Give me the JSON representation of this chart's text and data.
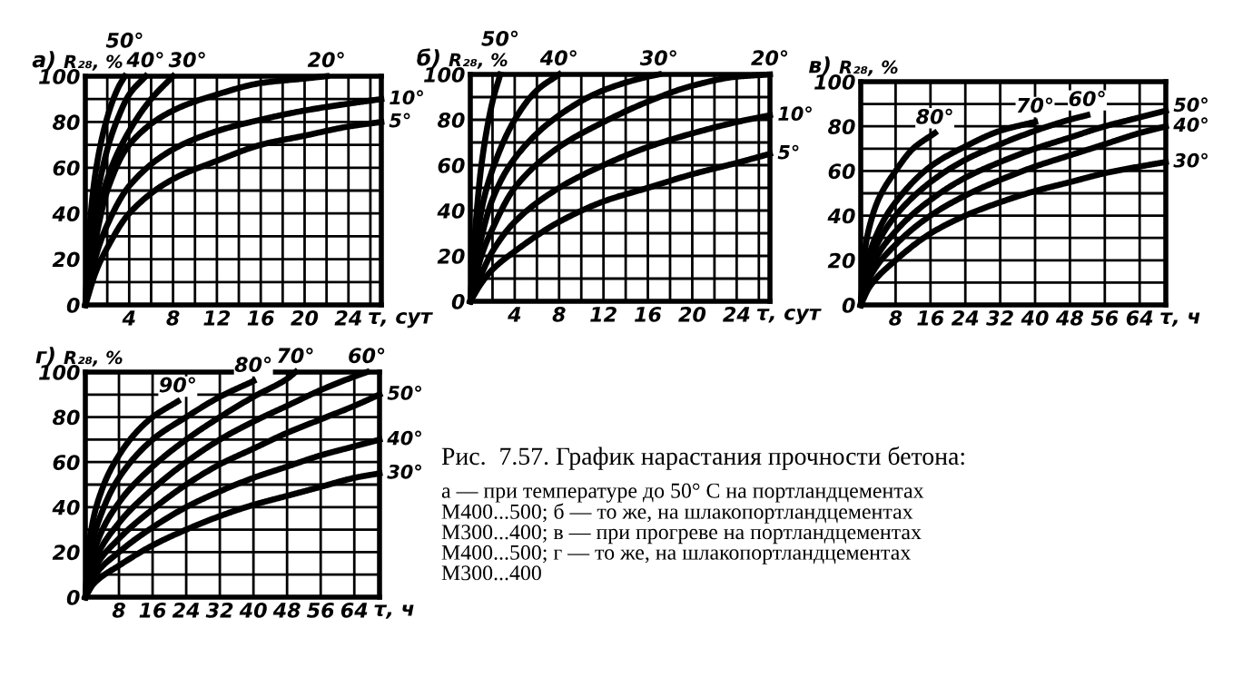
{
  "chart_data": [
    {
      "type": "line",
      "title": "а)",
      "ylabel": "R₂₈, %",
      "xlabel": "τ, сут",
      "xlim": [
        0,
        27
      ],
      "ylim": [
        0,
        100
      ],
      "xticks": [
        {
          "value": 2,
          "label": null
        },
        4,
        {
          "value": 6,
          "label": null
        },
        8,
        {
          "value": 10,
          "label": null
        },
        12,
        {
          "value": 14,
          "label": null
        },
        16,
        {
          "value": 18,
          "label": null
        },
        20,
        {
          "value": 22,
          "label": null
        },
        24,
        {
          "value": 26,
          "label": null
        }
      ],
      "yticks": [
        0,
        {
          "value": 10,
          "label": null
        },
        20,
        {
          "value": 30,
          "label": null
        },
        40,
        {
          "value": 50,
          "label": null
        },
        60,
        {
          "value": 70,
          "label": null
        },
        80,
        {
          "value": 90,
          "label": null
        },
        100
      ],
      "grid": true,
      "legend": false,
      "marker": "none",
      "line_style": "solid",
      "series": [
        {
          "name": "50°",
          "color": "#000000",
          "x": [
            0,
            0.5,
            1,
            2,
            3,
            3.6
          ],
          "values": [
            0,
            40,
            60,
            82,
            95,
            100
          ]
        },
        {
          "name": "40°",
          "color": "#000000",
          "x": [
            0,
            1,
            2,
            3,
            4,
            5.5
          ],
          "values": [
            0,
            45,
            68,
            82,
            92,
            100
          ]
        },
        {
          "name": "30°",
          "color": "#000000",
          "x": [
            0,
            1,
            2,
            4,
            6,
            8
          ],
          "values": [
            0,
            35,
            55,
            76,
            90,
            100
          ]
        },
        {
          "name": "20°",
          "color": "#000000",
          "x": [
            0,
            1,
            2,
            4,
            8,
            12,
            16,
            20,
            22
          ],
          "values": [
            0,
            30,
            50,
            70,
            85,
            92,
            97,
            99,
            100
          ]
        },
        {
          "name": "10°",
          "color": "#000000",
          "x": [
            0,
            1,
            2,
            4,
            8,
            12,
            16,
            20,
            24,
            27
          ],
          "values": [
            0,
            22,
            35,
            52,
            68,
            76,
            81,
            85,
            88,
            90
          ]
        },
        {
          "name": "5°",
          "color": "#000000",
          "x": [
            0,
            1,
            2,
            4,
            8,
            12,
            16,
            20,
            24,
            27
          ],
          "values": [
            0,
            15,
            25,
            40,
            55,
            63,
            70,
            74,
            78,
            80
          ]
        }
      ]
    },
    {
      "type": "line",
      "title": "б)",
      "ylabel": "R₂₈, %",
      "xlabel": "τ, сут",
      "xlim": [
        0,
        27
      ],
      "ylim": [
        0,
        100
      ],
      "xticks": [
        {
          "value": 2,
          "label": null
        },
        4,
        {
          "value": 6,
          "label": null
        },
        8,
        {
          "value": 10,
          "label": null
        },
        12,
        {
          "value": 14,
          "label": null
        },
        16,
        {
          "value": 18,
          "label": null
        },
        20,
        {
          "value": 22,
          "label": null
        },
        24,
        {
          "value": 26,
          "label": null
        }
      ],
      "yticks": [
        0,
        {
          "value": 10,
          "label": null
        },
        20,
        {
          "value": 30,
          "label": null
        },
        40,
        {
          "value": 50,
          "label": null
        },
        60,
        {
          "value": 70,
          "label": null
        },
        80,
        {
          "value": 90,
          "label": null
        },
        100
      ],
      "grid": true,
      "legend": false,
      "marker": "none",
      "line_style": "solid",
      "series": [
        {
          "name": "50°",
          "color": "#000000",
          "x": [
            0,
            0.5,
            1,
            2,
            2.7
          ],
          "values": [
            0,
            35,
            60,
            88,
            100
          ]
        },
        {
          "name": "40°",
          "color": "#000000",
          "x": [
            0,
            1,
            2,
            4,
            6,
            8
          ],
          "values": [
            0,
            40,
            58,
            80,
            93,
            100
          ]
        },
        {
          "name": "30°",
          "color": "#000000",
          "x": [
            0,
            1,
            2,
            4,
            8,
            12,
            16,
            17
          ],
          "values": [
            0,
            28,
            45,
            63,
            82,
            93,
            99,
            100
          ]
        },
        {
          "name": "20°",
          "color": "#000000",
          "x": [
            0,
            1,
            2,
            4,
            8,
            12,
            16,
            20,
            24,
            27
          ],
          "values": [
            0,
            20,
            32,
            50,
            68,
            79,
            88,
            95,
            99,
            100
          ]
        },
        {
          "name": "10°",
          "color": "#000000",
          "x": [
            0,
            1,
            2,
            4,
            8,
            12,
            16,
            20,
            24,
            27
          ],
          "values": [
            0,
            12,
            22,
            35,
            50,
            60,
            68,
            74,
            79,
            82
          ]
        },
        {
          "name": "5°",
          "color": "#000000",
          "x": [
            0,
            1,
            2,
            4,
            8,
            12,
            16,
            20,
            24,
            27
          ],
          "values": [
            0,
            8,
            14,
            22,
            35,
            44,
            50,
            56,
            61,
            65
          ]
        }
      ]
    },
    {
      "type": "line",
      "title": "в)",
      "ylabel": "R₂₈, %",
      "xlabel": "τ, ч",
      "xlim": [
        0,
        70
      ],
      "ylim": [
        0,
        100
      ],
      "xticks": [
        8,
        16,
        24,
        32,
        40,
        48,
        56,
        64
      ],
      "yticks": [
        0,
        {
          "value": 10,
          "label": null
        },
        20,
        {
          "value": 30,
          "label": null
        },
        40,
        {
          "value": 50,
          "label": null
        },
        60,
        {
          "value": 70,
          "label": null
        },
        80,
        {
          "value": 90,
          "label": null
        },
        100
      ],
      "grid": true,
      "legend": false,
      "marker": "none",
      "line_style": "solid",
      "series": [
        {
          "name": "80°",
          "color": "#000000",
          "x": [
            0,
            1,
            2,
            4,
            8,
            12,
            17
          ],
          "values": [
            0,
            25,
            35,
            47,
            60,
            70,
            77
          ]
        },
        {
          "name": "70°",
          "color": "#000000",
          "x": [
            0,
            1,
            4,
            8,
            16,
            24,
            32,
            40
          ],
          "values": [
            0,
            15,
            33,
            46,
            62,
            71,
            78,
            82
          ]
        },
        {
          "name": "60°",
          "color": "#000000",
          "x": [
            0,
            1,
            4,
            8,
            16,
            24,
            32,
            40,
            48,
            52
          ],
          "values": [
            0,
            12,
            28,
            40,
            55,
            65,
            72,
            78,
            83,
            85
          ]
        },
        {
          "name": "50°",
          "color": "#000000",
          "x": [
            0,
            2,
            8,
            16,
            24,
            32,
            40,
            48,
            56,
            64,
            70
          ],
          "values": [
            0,
            15,
            33,
            47,
            57,
            64,
            70,
            75,
            80,
            84,
            87
          ]
        },
        {
          "name": "40°",
          "color": "#000000",
          "x": [
            0,
            2,
            8,
            16,
            24,
            32,
            40,
            48,
            56,
            64,
            70
          ],
          "values": [
            0,
            12,
            27,
            40,
            49,
            56,
            62,
            67,
            72,
            77,
            80
          ]
        },
        {
          "name": "30°",
          "color": "#000000",
          "x": [
            0,
            2,
            8,
            16,
            24,
            32,
            40,
            48,
            56,
            64,
            70
          ],
          "values": [
            0,
            8,
            20,
            32,
            40,
            46,
            51,
            55,
            59,
            62,
            64
          ]
        }
      ]
    },
    {
      "type": "line",
      "title": "г)",
      "ylabel": "R₂₈, %",
      "xlabel": "τ, ч",
      "xlim": [
        0,
        70
      ],
      "ylim": [
        0,
        100
      ],
      "xticks": [
        8,
        16,
        24,
        32,
        40,
        48,
        56,
        64
      ],
      "yticks": [
        0,
        {
          "value": 10,
          "label": null
        },
        20,
        {
          "value": 30,
          "label": null
        },
        40,
        {
          "value": 50,
          "label": null
        },
        60,
        {
          "value": 70,
          "label": null
        },
        80,
        {
          "value": 90,
          "label": null
        },
        100
      ],
      "grid": true,
      "legend": false,
      "marker": "none",
      "line_style": "solid",
      "series": [
        {
          "name": "90°",
          "color": "#000000",
          "x": [
            0,
            1,
            4,
            8,
            12,
            16,
            22
          ],
          "values": [
            0,
            25,
            48,
            63,
            73,
            80,
            87
          ]
        },
        {
          "name": "80°",
          "color": "#000000",
          "x": [
            0,
            1,
            4,
            8,
            16,
            24,
            32,
            40
          ],
          "values": [
            0,
            18,
            38,
            53,
            70,
            80,
            89,
            96
          ]
        },
        {
          "name": "70°",
          "color": "#000000",
          "x": [
            0,
            2,
            8,
            16,
            24,
            32,
            40,
            48,
            50
          ],
          "values": [
            0,
            20,
            42,
            58,
            70,
            80,
            89,
            97,
            100
          ]
        },
        {
          "name": "60°",
          "color": "#000000",
          "x": [
            0,
            2,
            8,
            16,
            24,
            32,
            40,
            48,
            56,
            64,
            67
          ],
          "values": [
            0,
            15,
            33,
            48,
            60,
            70,
            78,
            85,
            92,
            98,
            100
          ]
        },
        {
          "name": "50°",
          "color": "#000000",
          "x": [
            0,
            2,
            8,
            16,
            24,
            32,
            40,
            48,
            56,
            64,
            70
          ],
          "values": [
            0,
            12,
            26,
            39,
            50,
            59,
            66,
            73,
            79,
            85,
            90
          ]
        },
        {
          "name": "40°",
          "color": "#000000",
          "x": [
            0,
            2,
            8,
            16,
            24,
            32,
            40,
            48,
            56,
            64,
            70
          ],
          "values": [
            0,
            9,
            20,
            31,
            40,
            47,
            53,
            58,
            63,
            67,
            70
          ]
        },
        {
          "name": "30°",
          "color": "#000000",
          "x": [
            0,
            2,
            8,
            16,
            24,
            32,
            40,
            48,
            56,
            64,
            70
          ],
          "values": [
            0,
            6,
            14,
            23,
            30,
            36,
            41,
            45,
            49,
            53,
            55
          ]
        }
      ],
      "annotations": [
        "Рис.  7.57. График нарастания прочности бетона:",
        "а — при температуре до 50° С на портландцементах\nМ400...500; б — то же, на шлакопортландцементах\nМ300...400; в — при прогреве на портландцементах\nМ400...500; г — то же, на шлакопортландцементах\nМ300...400"
      ]
    }
  ]
}
